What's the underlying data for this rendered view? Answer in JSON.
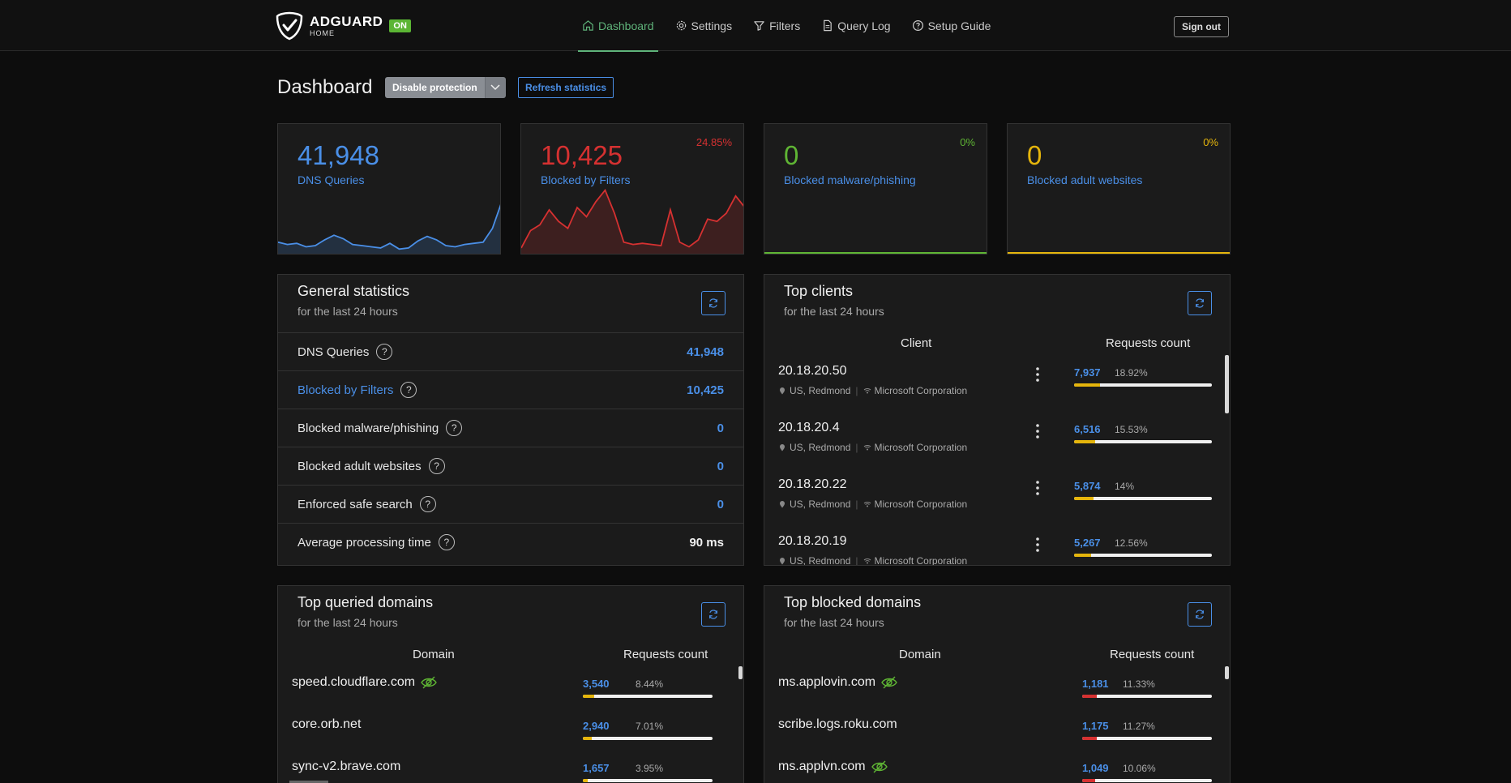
{
  "header": {
    "brand": "ADGUARD",
    "brand_sub": "HOME",
    "status_badge": "ON",
    "nav": [
      {
        "label": "Dashboard",
        "icon": "home-icon",
        "active": true
      },
      {
        "label": "Settings",
        "icon": "gear-icon"
      },
      {
        "label": "Filters",
        "icon": "filter-icon"
      },
      {
        "label": "Query Log",
        "icon": "document-icon"
      },
      {
        "label": "Setup Guide",
        "icon": "help-circle-icon"
      }
    ],
    "sign_out": "Sign out"
  },
  "page": {
    "title": "Dashboard",
    "disable_protection": "Disable protection",
    "refresh_statistics": "Refresh statistics"
  },
  "stats": {
    "dns_queries": {
      "value": "41,948",
      "label": "DNS Queries",
      "color": "#4a8fe7",
      "sparkline": [
        10,
        8,
        9,
        6,
        7,
        12,
        16,
        13,
        8,
        7,
        6,
        5,
        9,
        4,
        5,
        11,
        15,
        12,
        7,
        6,
        8,
        9,
        10,
        22,
        45
      ]
    },
    "blocked_filters": {
      "value": "10,425",
      "label": "Blocked by Filters",
      "percent": "24.85%",
      "color": "#d63131",
      "sparkline": [
        5,
        20,
        25,
        38,
        28,
        22,
        40,
        32,
        45,
        55,
        35,
        10,
        8,
        9,
        8,
        7,
        38,
        10,
        6,
        12,
        30,
        28,
        35,
        50,
        40
      ]
    },
    "blocked_malware": {
      "value": "0",
      "label": "Blocked malware/phishing",
      "percent": "0%",
      "color": "#5fb534"
    },
    "blocked_adult": {
      "value": "0",
      "label": "Blocked adult websites",
      "percent": "0%",
      "color": "#e5b50c"
    }
  },
  "general": {
    "title": "General statistics",
    "subtitle": "for the last 24 hours",
    "rows": [
      {
        "label": "DNS Queries",
        "value": "41,948"
      },
      {
        "label": "Blocked by Filters",
        "value": "10,425"
      },
      {
        "label": "Blocked malware/phishing",
        "value": "0"
      },
      {
        "label": "Blocked adult websites",
        "value": "0"
      },
      {
        "label": "Enforced safe search",
        "value": "0"
      },
      {
        "label": "Average processing time",
        "value": "90 ms"
      }
    ],
    "help_glyph": "?"
  },
  "top_clients": {
    "title": "Top clients",
    "subtitle": "for the last 24 hours",
    "col_client": "Client",
    "col_requests": "Requests count",
    "rows": [
      {
        "ip": "20.18.20.50",
        "location": "US, Redmond",
        "org": "Microsoft Corporation",
        "count": "7,937",
        "percent": "18.92%",
        "fill": 0.1892
      },
      {
        "ip": "20.18.20.4",
        "location": "US, Redmond",
        "org": "Microsoft Corporation",
        "count": "6,516",
        "percent": "15.53%",
        "fill": 0.1553
      },
      {
        "ip": "20.18.20.22",
        "location": "US, Redmond",
        "org": "Microsoft Corporation",
        "count": "5,874",
        "percent": "14%",
        "fill": 0.14
      },
      {
        "ip": "20.18.20.19",
        "location": "US, Redmond",
        "org": "Microsoft Corporation",
        "count": "5,267",
        "percent": "12.56%",
        "fill": 0.1256
      }
    ]
  },
  "top_queried": {
    "title": "Top queried domains",
    "subtitle": "for the last 24 hours",
    "col_domain": "Domain",
    "col_requests": "Requests count",
    "bar_color": "#e5b50c",
    "rows": [
      {
        "domain": "speed.cloudflare.com",
        "tracker_icon": true,
        "count": "3,540",
        "percent": "8.44%",
        "fill": 0.0844
      },
      {
        "domain": "core.orb.net",
        "tracker_icon": false,
        "count": "2,940",
        "percent": "7.01%",
        "fill": 0.0701
      },
      {
        "domain": "sync-v2.brave.com",
        "tracker_icon": false,
        "count": "1,657",
        "percent": "3.95%",
        "fill": 0.0395
      }
    ]
  },
  "top_blocked": {
    "title": "Top blocked domains",
    "subtitle": "for the last 24 hours",
    "col_domain": "Domain",
    "col_requests": "Requests count",
    "bar_color": "#d63131",
    "rows": [
      {
        "domain": "ms.applovin.com",
        "tracker_icon": true,
        "count": "1,181",
        "percent": "11.33%",
        "fill": 0.1133
      },
      {
        "domain": "scribe.logs.roku.com",
        "tracker_icon": false,
        "count": "1,175",
        "percent": "11.27%",
        "fill": 0.1127
      },
      {
        "domain": "ms.applvn.com",
        "tracker_icon": true,
        "count": "1,049",
        "percent": "10.06%",
        "fill": 0.1006
      }
    ]
  }
}
